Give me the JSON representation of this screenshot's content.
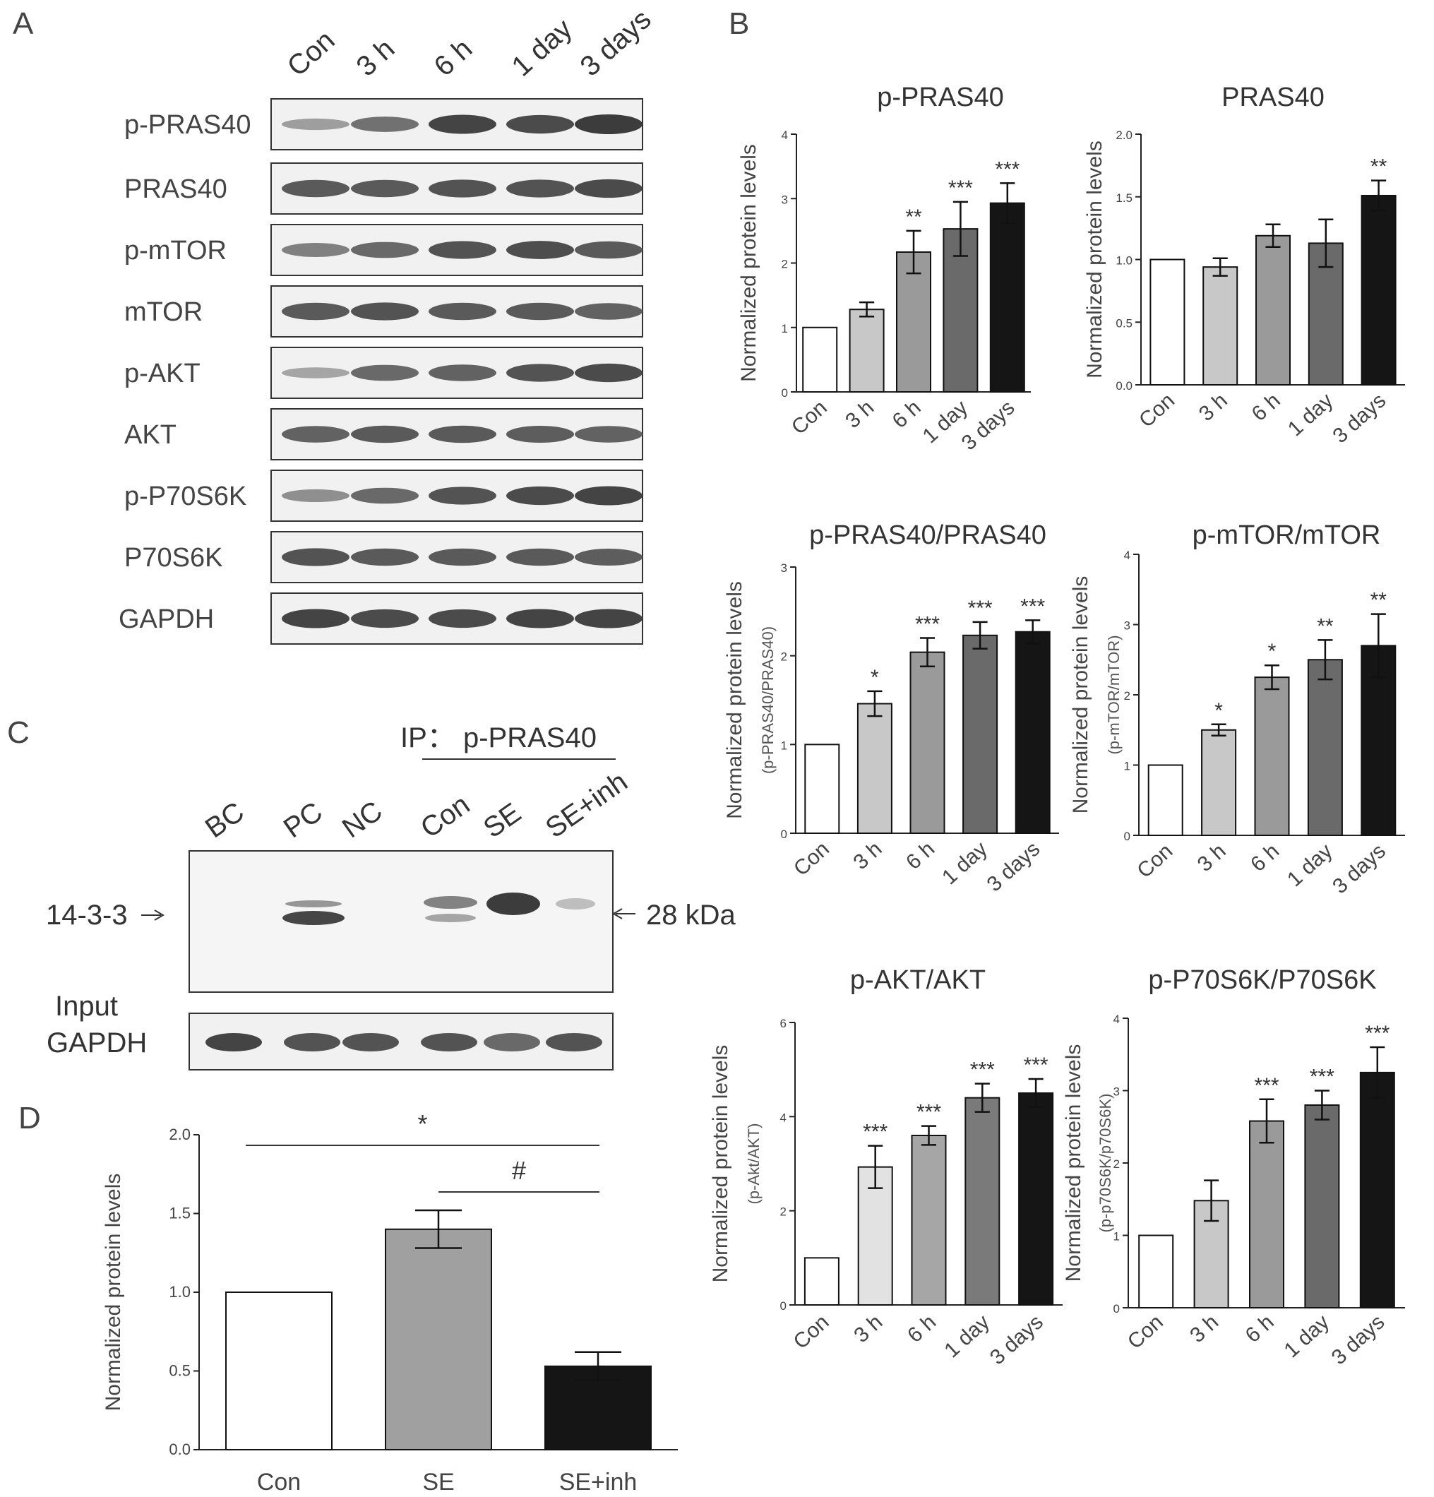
{
  "panel_letters": {
    "a": "A",
    "b": "B",
    "c": "C",
    "d": "D"
  },
  "blot_a": {
    "lanes": [
      "Con",
      "3 h",
      "6 h",
      "1 day",
      "3 days"
    ],
    "rows": [
      "p-PRAS40",
      "PRAS40",
      "p-mTOR",
      "mTOR",
      "p-AKT",
      "AKT",
      "p-P70S6K",
      "P70S6K",
      "GAPDH"
    ]
  },
  "blot_c": {
    "ip_label": "IP： p-PRAS40",
    "lanes": [
      "BC",
      "PC",
      "NC",
      "Con",
      "SE",
      "SE+inh"
    ],
    "band_label": "14-3-3",
    "size_label": "28 kDa",
    "input_label": "Input",
    "gapdh_label": "GAPDH"
  },
  "chart_data": [
    {
      "type": "bar",
      "title": "p-PRAS40",
      "ylabel": "Normalized protein levels",
      "ylabel_sub": "",
      "categories": [
        "Con",
        "3 h",
        "6 h",
        "1 day",
        "3 days"
      ],
      "values": [
        1.0,
        1.28,
        2.17,
        2.53,
        2.93
      ],
      "errors": [
        0,
        0.11,
        0.33,
        0.42,
        0.31
      ],
      "sig": [
        "",
        "",
        "**",
        "***",
        "***"
      ],
      "ylim": [
        0,
        4
      ],
      "yticks": [
        "0",
        "1",
        "2",
        "3",
        "4"
      ],
      "bar_colors": [
        "#ffffff",
        "#c8c8c8",
        "#9a9a9a",
        "#6a6a6a",
        "#151515"
      ]
    },
    {
      "type": "bar",
      "title": "PRAS40",
      "ylabel": "Normalized protein levels",
      "ylabel_sub": "",
      "categories": [
        "Con",
        "3 h",
        "6 h",
        "1 day",
        "3 days"
      ],
      "values": [
        1.0,
        0.94,
        1.19,
        1.13,
        1.51
      ],
      "errors": [
        0,
        0.07,
        0.09,
        0.19,
        0.12
      ],
      "sig": [
        "",
        "",
        "",
        "",
        "**"
      ],
      "ylim": [
        0,
        2.0
      ],
      "yticks": [
        "0.0",
        "0.5",
        "1.0",
        "1.5",
        "2.0"
      ],
      "bar_colors": [
        "#ffffff",
        "#c8c8c8",
        "#9a9a9a",
        "#6a6a6a",
        "#151515"
      ]
    },
    {
      "type": "bar",
      "title": "p-PRAS40/PRAS40",
      "ylabel": "Normalized protein levels",
      "ylabel_sub": "(p-PRAS40/PRAS40)",
      "categories": [
        "Con",
        "3 h",
        "6 h",
        "1 day",
        "3 days"
      ],
      "values": [
        1.0,
        1.46,
        2.04,
        2.23,
        2.27
      ],
      "errors": [
        0,
        0.14,
        0.16,
        0.15,
        0.13
      ],
      "sig": [
        "",
        "*",
        "***",
        "***",
        "***"
      ],
      "ylim": [
        0,
        3
      ],
      "yticks": [
        "0",
        "1",
        "2",
        "3"
      ],
      "bar_colors": [
        "#ffffff",
        "#c8c8c8",
        "#9a9a9a",
        "#6a6a6a",
        "#151515"
      ]
    },
    {
      "type": "bar",
      "title": "p-mTOR/mTOR",
      "ylabel": "Normalized protein levels",
      "ylabel_sub": "(p-mTOR/mTOR)",
      "categories": [
        "Con",
        "3 h",
        "6 h",
        "1 day",
        "3 days"
      ],
      "values": [
        1.0,
        1.5,
        2.25,
        2.5,
        2.7
      ],
      "errors": [
        0,
        0.08,
        0.17,
        0.28,
        0.45
      ],
      "sig": [
        "",
        "*",
        "*",
        "**",
        "**"
      ],
      "ylim": [
        0,
        4
      ],
      "yticks": [
        "0",
        "1",
        "2",
        "3",
        "4"
      ],
      "bar_colors": [
        "#ffffff",
        "#c8c8c8",
        "#9a9a9a",
        "#6a6a6a",
        "#151515"
      ]
    },
    {
      "type": "bar",
      "title": "p-AKT/AKT",
      "ylabel": "Normalized protein levels",
      "ylabel_sub": "(p-Akt/AKT)",
      "categories": [
        "Con",
        "3 h",
        "6 h",
        "1 day",
        "3 days"
      ],
      "values": [
        1.0,
        2.93,
        3.6,
        4.4,
        4.5
      ],
      "errors": [
        0,
        0.45,
        0.2,
        0.3,
        0.3
      ],
      "sig": [
        "",
        "***",
        "***",
        "***",
        "***"
      ],
      "ylim": [
        0,
        6
      ],
      "yticks": [
        "0",
        "2",
        "4",
        "6"
      ],
      "bar_colors": [
        "#ffffff",
        "#e2e2e2",
        "#a6a6a6",
        "#7a7a7a",
        "#151515"
      ]
    },
    {
      "type": "bar",
      "title": "p-P70S6K/P70S6K",
      "ylabel": "Normalized protein levels",
      "ylabel_sub": "(p-p70S6K/p70S6K)",
      "categories": [
        "Con",
        "3 h",
        "6 h",
        "1 day",
        "3 days"
      ],
      "values": [
        1.0,
        1.48,
        2.58,
        2.8,
        3.25
      ],
      "errors": [
        0,
        0.28,
        0.3,
        0.2,
        0.35
      ],
      "sig": [
        "",
        "",
        "***",
        "***",
        "***"
      ],
      "ylim": [
        0,
        4
      ],
      "yticks": [
        "0",
        "1",
        "2",
        "3",
        "4"
      ],
      "bar_colors": [
        "#ffffff",
        "#c8c8c8",
        "#9a9a9a",
        "#6a6a6a",
        "#151515"
      ]
    },
    {
      "type": "bar",
      "title": "",
      "ylabel": "Normalized protein levels",
      "ylabel_sub": "",
      "categories": [
        "Con",
        "SE",
        "SE+inh"
      ],
      "values": [
        1.0,
        1.4,
        0.53
      ],
      "errors": [
        0,
        0.12,
        0.09
      ],
      "sig": [
        "",
        "",
        ""
      ],
      "ylim": [
        0,
        2.0
      ],
      "yticks": [
        "0.0",
        "0.5",
        "1.0",
        "1.5",
        "2.0"
      ],
      "bar_colors": [
        "#ffffff",
        "#a0a0a0",
        "#151515"
      ],
      "annotations": [
        {
          "label": "*",
          "from": "Con",
          "to": "SE+inh"
        },
        {
          "label": "#",
          "from": "SE",
          "to": "SE+inh"
        }
      ]
    }
  ]
}
